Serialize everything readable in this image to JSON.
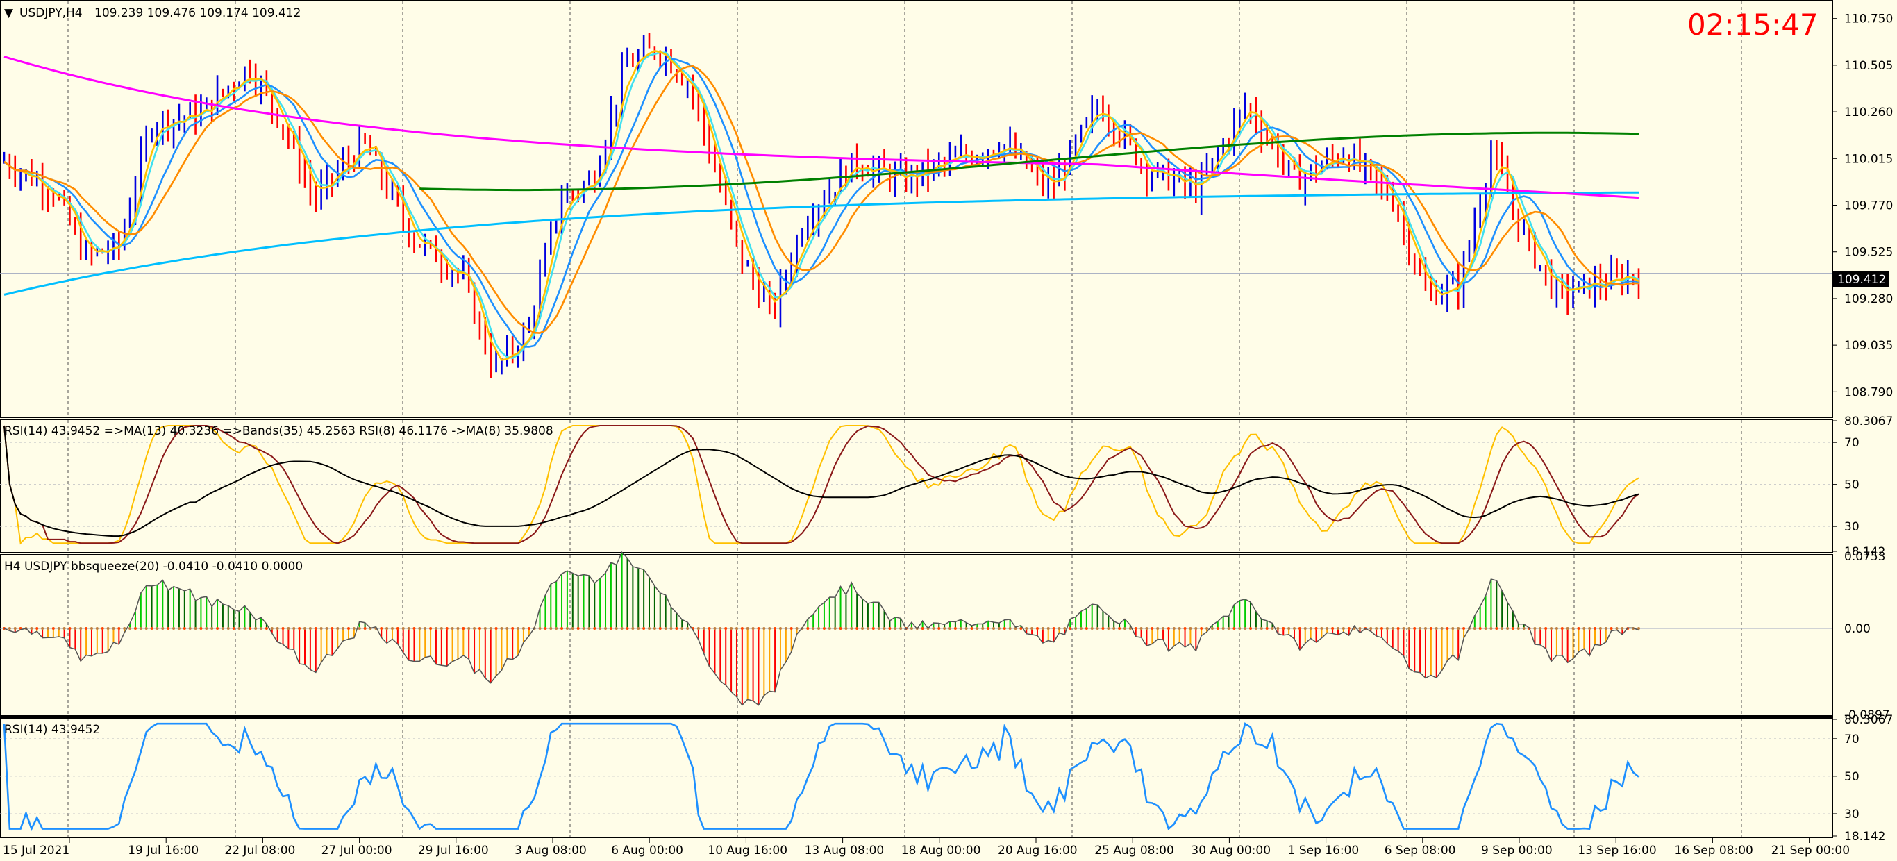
{
  "window": {
    "symbol_title": "USDJPY,H4",
    "ohlc_text": "109.239 109.476 109.174 109.412",
    "clock": "02:15:47"
  },
  "main_panel": {
    "price_ticks": [
      "110.750",
      "110.505",
      "110.260",
      "110.015",
      "109.770",
      "109.525",
      "109.280",
      "109.035",
      "108.790"
    ],
    "current_price": "109.412",
    "price_min": 108.66,
    "price_max": 110.84,
    "colors": {
      "bull": "#0000e0",
      "bear": "#ff0000",
      "ma_fast": "#40e0f0",
      "ma_mid": "#1e90ff",
      "ma_slow": "#ff8c00",
      "ma_yellow": "#ffc000",
      "ma_long": "#00bfff",
      "ma_magenta": "#ff00ff",
      "ma_green": "#008000"
    }
  },
  "rsi_panel": {
    "header": "RSI(14) 43.9452  =>MA(13) 40.3236  =>Bands(35) 45.2563  RSI(8) 46.1176  ->MA(8) 35.9808",
    "ticks": [
      "80.3067",
      "70",
      "50",
      "30",
      "18.142"
    ]
  },
  "squeeze_panel": {
    "header": "H4 USDJPY bbsqueeze(20) -0.0410 -0.0410 0.0000",
    "ticks": [
      "0.0753",
      "0.00",
      "-0.0897"
    ]
  },
  "rsi2_panel": {
    "header": "RSI(14) 43.9452",
    "ticks": [
      "80.3067",
      "70",
      "50",
      "30",
      "18.142"
    ]
  },
  "time_axis": {
    "labels": [
      "15 Jul 2021",
      "19 Jul 16:00",
      "22 Jul 08:00",
      "27 Jul 00:00",
      "29 Jul 16:00",
      "3 Aug 08:00",
      "6 Aug 00:00",
      "10 Aug 16:00",
      "13 Aug 08:00",
      "18 Aug 00:00",
      "20 Aug 16:00",
      "25 Aug 08:00",
      "30 Aug 00:00",
      "1 Sep 16:00",
      "6 Sep 08:00",
      "9 Sep 00:00",
      "13 Sep 16:00",
      "16 Sep 08:00",
      "21 Sep 00:00"
    ]
  }
}
